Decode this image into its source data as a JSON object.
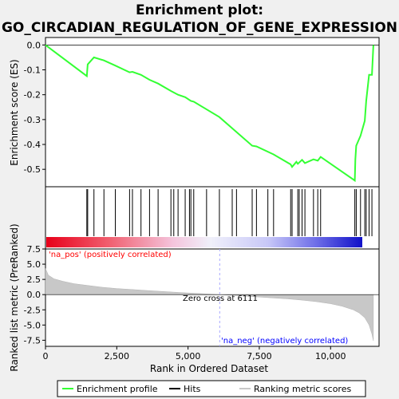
{
  "title_line1": "Enrichment plot:",
  "title_line2": "GO_CIRCADIAN_REGULATION_OF_GENE_EXPRESSION",
  "colors": {
    "enrichment_line": "#33ff33",
    "hits": "#000000",
    "ranking_fill": "#c8c8c8",
    "pos_label": "#ff0000",
    "neg_label": "#0000ff",
    "zero_cross_line": "#aaaaff"
  },
  "chart_data": [
    {
      "type": "line",
      "name": "enrichment-score",
      "ylabel": "Enrichment score (ES)",
      "ylim": [
        -0.57,
        0.03
      ],
      "xlim": [
        0,
        11700
      ],
      "yticks": [
        0.0,
        -0.1,
        -0.2,
        -0.3,
        -0.4,
        -0.5
      ],
      "ytick_labels": [
        "0.0",
        "-0.1",
        "-0.2",
        "-0.3",
        "-0.4",
        "-0.5"
      ],
      "grid": false,
      "x": [
        0,
        1450,
        1480,
        1700,
        2050,
        2450,
        2950,
        3050,
        3350,
        3650,
        3950,
        4400,
        4650,
        4900,
        5100,
        5200,
        6100,
        7250,
        7400,
        8000,
        8600,
        8650,
        8800,
        8850,
        9000,
        9100,
        9400,
        9550,
        9650,
        10850,
        10870,
        10900,
        11050,
        11200,
        11250,
        11350,
        11450,
        11500
      ],
      "y": [
        0.0,
        -0.125,
        -0.078,
        -0.05,
        -0.062,
        -0.083,
        -0.11,
        -0.108,
        -0.12,
        -0.14,
        -0.155,
        -0.185,
        -0.2,
        -0.21,
        -0.225,
        -0.228,
        -0.29,
        -0.405,
        -0.408,
        -0.44,
        -0.48,
        -0.49,
        -0.47,
        -0.478,
        -0.462,
        -0.475,
        -0.46,
        -0.465,
        -0.45,
        -0.545,
        -0.46,
        -0.405,
        -0.365,
        -0.305,
        -0.225,
        -0.12,
        -0.12,
        0.0
      ]
    },
    {
      "type": "scatter",
      "name": "hits",
      "x": [
        1450,
        1480,
        1700,
        2050,
        2450,
        2950,
        3050,
        3350,
        3650,
        3950,
        4400,
        4500,
        4650,
        4900,
        5050,
        5100,
        5200,
        5650,
        6100,
        6550,
        6700,
        7250,
        7400,
        7800,
        8000,
        8600,
        8650,
        8850,
        8900,
        9000,
        9100,
        9400,
        9550,
        9650,
        10850,
        10900,
        11050,
        11200,
        11250,
        11350,
        11450
      ]
    },
    {
      "type": "area",
      "name": "ranked-list-metric",
      "ylabel": "Ranked list metric (PreRanked)",
      "xlabel": "Rank in Ordered Dataset",
      "ylim": [
        -8.5,
        7.5
      ],
      "xlim": [
        0,
        11700
      ],
      "yticks": [
        7.5,
        5.0,
        2.5,
        0.0,
        -2.5,
        -5.0,
        -7.5
      ],
      "ytick_labels": [
        "7.5",
        "5.0",
        "2.5",
        "0.0",
        "-2.5",
        "-5.0",
        "-7.5"
      ],
      "xticks": [
        0,
        2500,
        5000,
        7500,
        10000
      ],
      "xtick_labels": [
        "0",
        "2,500",
        "5,000",
        "7,500",
        "10,000"
      ],
      "x": [
        0,
        100,
        300,
        600,
        1000,
        1500,
        2000,
        2500,
        3000,
        3500,
        4000,
        4500,
        5000,
        5500,
        6111,
        6500,
        7000,
        7500,
        8000,
        8500,
        9000,
        9500,
        10000,
        10400,
        10800,
        11000,
        11200,
        11350,
        11450,
        11500
      ],
      "y": [
        4.3,
        3.2,
        2.6,
        2.2,
        1.8,
        1.5,
        1.2,
        1.0,
        0.85,
        0.7,
        0.55,
        0.4,
        0.28,
        0.15,
        0.0,
        -0.1,
        -0.25,
        -0.4,
        -0.55,
        -0.7,
        -0.9,
        -1.15,
        -1.5,
        -1.9,
        -2.5,
        -3.0,
        -3.8,
        -5.0,
        -6.5,
        -7.6
      ],
      "zero_cross_label": "Zero cross at 6111",
      "zero_cross_x": 6111,
      "pos_label": "'na_pos' (positively correlated)",
      "neg_label": "'na_neg' (negatively correlated)"
    }
  ],
  "legend": {
    "items": [
      {
        "label": "Enrichment profile",
        "color": "#33ff33"
      },
      {
        "label": "Hits",
        "color": "#000000"
      },
      {
        "label": "Ranking metric scores",
        "color": "#c8c8c8"
      }
    ]
  }
}
